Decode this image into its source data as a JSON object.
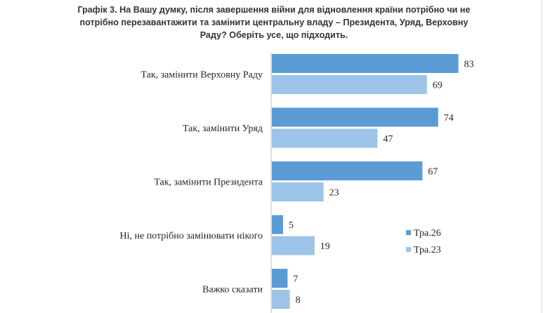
{
  "chart_data": {
    "type": "bar",
    "orientation": "horizontal",
    "title_lines": [
      "Графік 3. На Вашу думку, після завершення війни для відновлення країни потрібно чи не",
      "потрібно перезавантажити та замінити центральну владу – Президента, Уряд, Верховну",
      "Раду? Оберіть усе, що підходить."
    ],
    "categories": [
      "Так, замінити Верховну Раду",
      "Так, замінити Уряд",
      "Так, замінити Президента",
      "Ні, не потрібно замінювати нікого",
      "Важко сказати"
    ],
    "series": [
      {
        "name": "Тра.26",
        "color": "#5b9bd5",
        "values": [
          83,
          74,
          67,
          5,
          7
        ]
      },
      {
        "name": "Тра.23",
        "color": "#9dc3e6",
        "values": [
          69,
          47,
          23,
          19,
          8
        ]
      }
    ],
    "xlim": [
      0,
      100
    ],
    "grid": false,
    "legend": "right"
  }
}
